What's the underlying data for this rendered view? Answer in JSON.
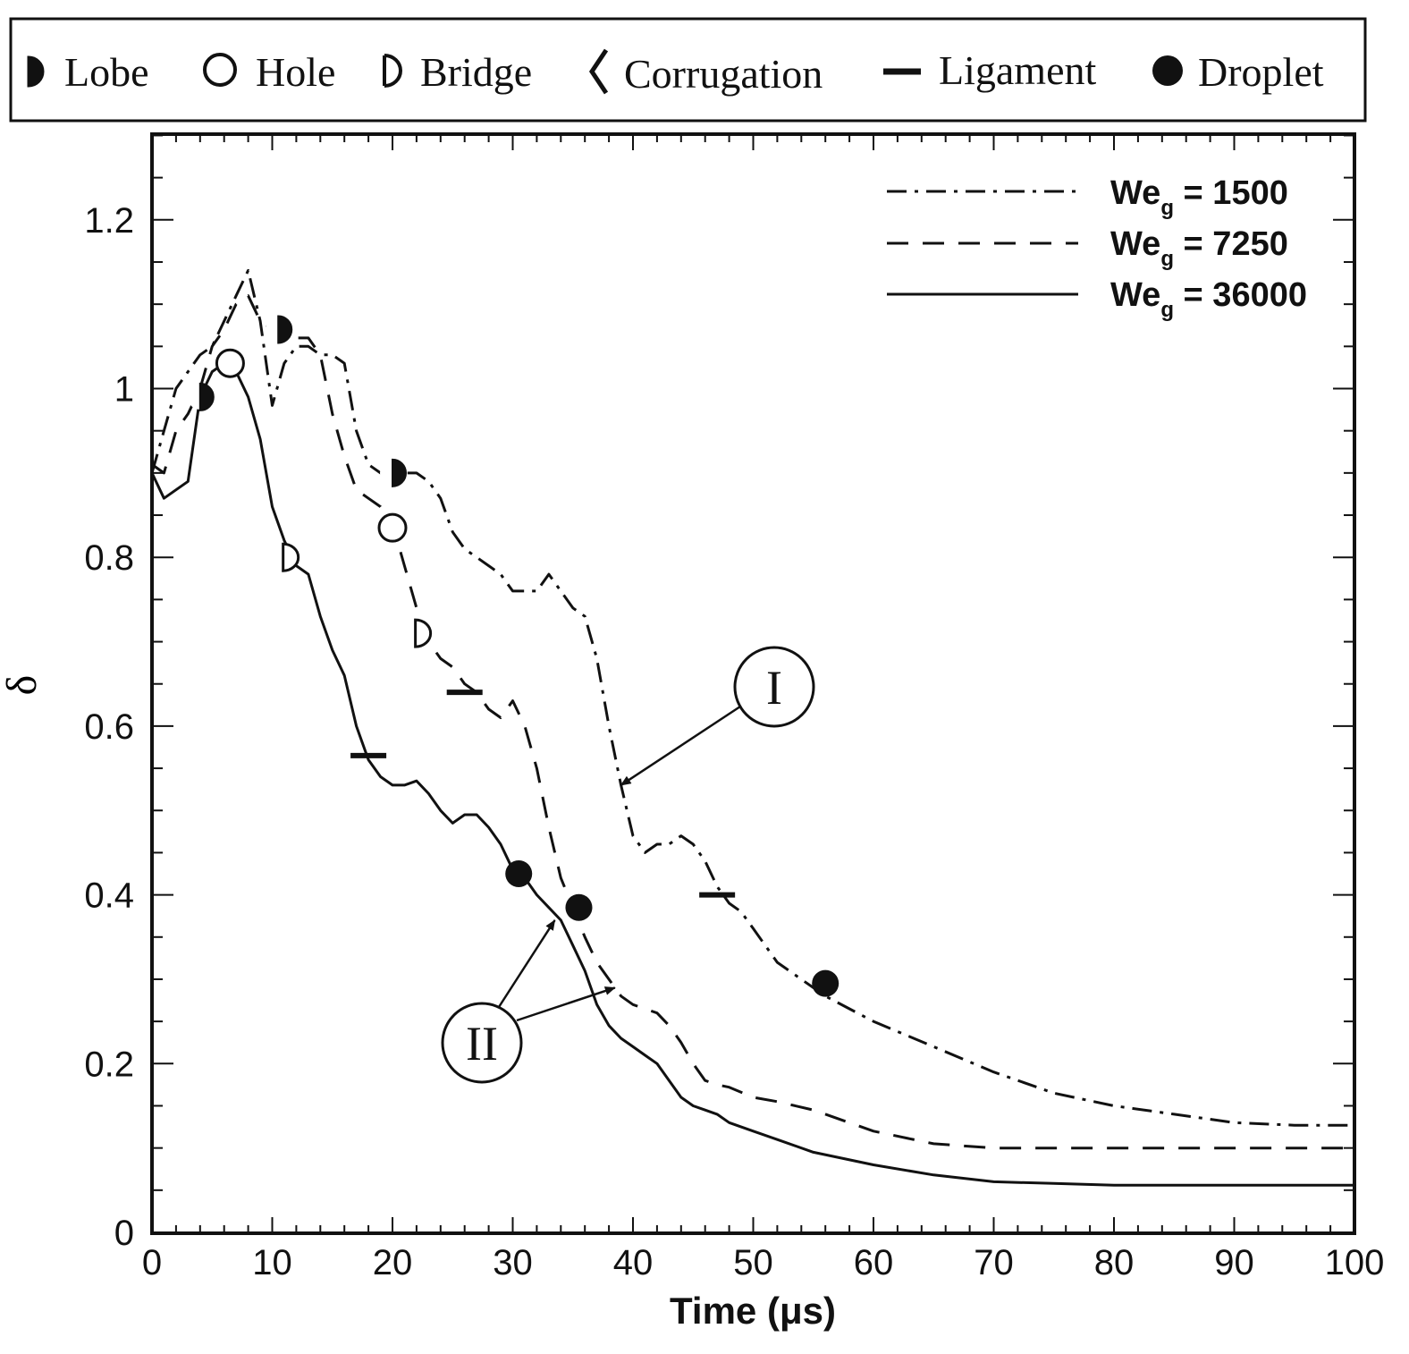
{
  "chart_data": {
    "type": "line",
    "xlabel": "Time (μs)",
    "ylabel": "δ",
    "xlim": [
      0,
      100
    ],
    "ylim": [
      0,
      1.3
    ],
    "x_ticks": [
      "0",
      "10",
      "20",
      "30",
      "40",
      "50",
      "60",
      "70",
      "80",
      "90",
      "100"
    ],
    "y_ticks": [
      "0",
      "0.2",
      "0.4",
      "0.6",
      "0.8",
      "1",
      "1.2"
    ],
    "marker_legend": [
      {
        "label": "Lobe",
        "marker": "lobe"
      },
      {
        "label": "Hole",
        "marker": "hole"
      },
      {
        "label": "Bridge",
        "marker": "bridge"
      },
      {
        "label": "Corrugation",
        "marker": "corrugation"
      },
      {
        "label": "Ligament",
        "marker": "ligament"
      },
      {
        "label": "Droplet",
        "marker": "droplet"
      }
    ],
    "series": [
      {
        "name": "We_g = 1500",
        "label_main": "We",
        "label_sub": "g",
        "label_value": " = 1500",
        "dash": "dashdot",
        "x": [
          0,
          1,
          2,
          3,
          4,
          5,
          6,
          7,
          8,
          9,
          10,
          11,
          12,
          13,
          14,
          15,
          16,
          17,
          18,
          19,
          20,
          21,
          22,
          23,
          24,
          25,
          26,
          27,
          28,
          29,
          30,
          31,
          32,
          33,
          34,
          35,
          36,
          37,
          38,
          39,
          40,
          41,
          42,
          43,
          44,
          45,
          46,
          47,
          48,
          49,
          50,
          52,
          54,
          56,
          58,
          60,
          65,
          70,
          75,
          80,
          85,
          90,
          95,
          100
        ],
        "y": [
          0.9,
          0.95,
          1.0,
          1.02,
          1.04,
          1.05,
          1.08,
          1.11,
          1.14,
          1.08,
          0.98,
          1.03,
          1.05,
          1.05,
          1.04,
          1.04,
          1.03,
          0.95,
          0.91,
          0.9,
          0.9,
          0.9,
          0.9,
          0.89,
          0.87,
          0.83,
          0.81,
          0.8,
          0.79,
          0.78,
          0.76,
          0.76,
          0.76,
          0.78,
          0.76,
          0.74,
          0.73,
          0.68,
          0.6,
          0.53,
          0.47,
          0.45,
          0.46,
          0.46,
          0.47,
          0.46,
          0.44,
          0.41,
          0.39,
          0.38,
          0.36,
          0.32,
          0.3,
          0.28,
          0.265,
          0.25,
          0.22,
          0.19,
          0.165,
          0.15,
          0.14,
          0.13,
          0.127,
          0.127
        ]
      },
      {
        "name": "We_g = 7250",
        "label_main": "We",
        "label_sub": "g",
        "label_value": " = 7250",
        "dash": "dashed",
        "x": [
          0,
          1,
          2,
          3,
          4,
          5,
          6,
          7,
          8,
          9,
          10,
          11,
          12,
          13,
          14,
          15,
          16,
          17,
          18,
          19,
          20,
          21,
          22,
          23,
          24,
          25,
          26,
          27,
          28,
          29,
          30,
          31,
          32,
          33,
          34,
          35,
          36,
          37,
          38,
          39,
          40,
          41,
          42,
          43,
          44,
          45,
          46,
          47,
          48,
          50,
          52,
          55,
          60,
          65,
          70,
          80,
          90,
          100
        ],
        "y": [
          0.91,
          0.9,
          0.95,
          0.97,
          1.0,
          1.05,
          1.07,
          1.1,
          1.11,
          1.08,
          1.07,
          1.06,
          1.06,
          1.06,
          1.04,
          0.97,
          0.92,
          0.88,
          0.87,
          0.86,
          0.84,
          0.79,
          0.74,
          0.7,
          0.68,
          0.67,
          0.65,
          0.64,
          0.62,
          0.61,
          0.63,
          0.6,
          0.55,
          0.48,
          0.42,
          0.385,
          0.35,
          0.32,
          0.3,
          0.28,
          0.27,
          0.265,
          0.26,
          0.245,
          0.225,
          0.2,
          0.18,
          0.175,
          0.172,
          0.16,
          0.155,
          0.145,
          0.12,
          0.105,
          0.1,
          0.1,
          0.1,
          0.1
        ]
      },
      {
        "name": "We_g = 36000",
        "label_main": "We",
        "label_sub": "g",
        "label_value": " = 36000",
        "dash": "solid",
        "x": [
          0,
          1,
          2,
          3,
          4,
          5,
          6,
          7,
          8,
          9,
          10,
          11,
          12,
          13,
          14,
          15,
          16,
          17,
          18,
          19,
          20,
          21,
          22,
          23,
          24,
          25,
          26,
          27,
          28,
          29,
          30,
          31,
          32,
          33,
          34,
          35,
          36,
          37,
          38,
          39,
          40,
          41,
          42,
          43,
          44,
          45,
          46,
          47,
          48,
          50,
          52,
          55,
          60,
          65,
          70,
          75,
          80,
          85,
          90,
          100
        ],
        "y": [
          0.9,
          0.87,
          0.88,
          0.89,
          0.99,
          1.02,
          1.03,
          1.02,
          0.99,
          0.94,
          0.86,
          0.82,
          0.79,
          0.78,
          0.73,
          0.69,
          0.66,
          0.6,
          0.56,
          0.54,
          0.53,
          0.53,
          0.535,
          0.52,
          0.5,
          0.485,
          0.495,
          0.495,
          0.48,
          0.46,
          0.43,
          0.42,
          0.4,
          0.385,
          0.37,
          0.34,
          0.31,
          0.27,
          0.245,
          0.23,
          0.22,
          0.21,
          0.2,
          0.18,
          0.16,
          0.15,
          0.145,
          0.14,
          0.13,
          0.12,
          0.11,
          0.095,
          0.08,
          0.068,
          0.06,
          0.058,
          0.056,
          0.056,
          0.056,
          0.056
        ]
      }
    ],
    "markers": [
      {
        "type": "lobe",
        "x": 4,
        "y": 0.99
      },
      {
        "type": "lobe",
        "x": 10.5,
        "y": 1.07
      },
      {
        "type": "lobe",
        "x": 20,
        "y": 0.9
      },
      {
        "type": "hole",
        "x": 6.5,
        "y": 1.03
      },
      {
        "type": "hole",
        "x": 20,
        "y": 0.835
      },
      {
        "type": "bridge",
        "x": 11.5,
        "y": 0.8
      },
      {
        "type": "bridge",
        "x": 22.5,
        "y": 0.71
      },
      {
        "type": "ligament",
        "x": 18,
        "y": 0.565
      },
      {
        "type": "ligament",
        "x": 26,
        "y": 0.64
      },
      {
        "type": "ligament",
        "x": 47,
        "y": 0.4
      },
      {
        "type": "droplet",
        "x": 30.5,
        "y": 0.425
      },
      {
        "type": "droplet",
        "x": 35.5,
        "y": 0.385
      },
      {
        "type": "droplet",
        "x": 56,
        "y": 0.295
      }
    ],
    "annotations": [
      {
        "label": "I",
        "points_to": [
          {
            "x": 39,
            "y": 0.53
          }
        ]
      },
      {
        "label": "II",
        "points_to": [
          {
            "x": 33.5,
            "y": 0.37
          },
          {
            "x": 38.5,
            "y": 0.29
          }
        ]
      }
    ]
  }
}
